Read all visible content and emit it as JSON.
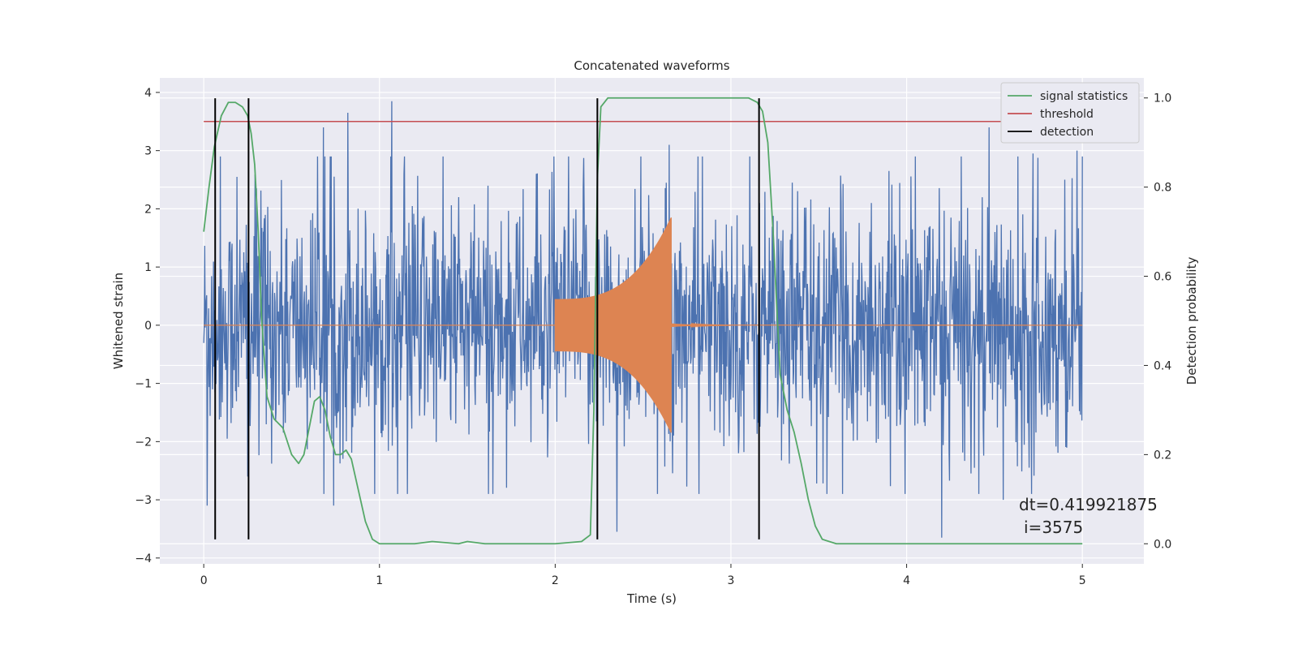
{
  "chart_data": {
    "type": "line",
    "title": "Concatenated waveforms",
    "xlabel": "Time (s)",
    "ylabel": "Whitened strain",
    "y2label": "Detection probability",
    "xlim": [
      -0.25,
      5.35
    ],
    "ylim": [
      -4.1,
      4.25
    ],
    "y2lim": [
      -0.045,
      1.045
    ],
    "xticks": [
      0,
      1,
      2,
      3,
      4,
      5
    ],
    "yticks": [
      -4,
      -3,
      -2,
      -1,
      0,
      1,
      2,
      3,
      4
    ],
    "y2ticks": [
      0.0,
      0.2,
      0.4,
      0.6,
      0.8,
      1.0
    ],
    "grid": true,
    "legend_position": "top-right",
    "colors": {
      "strain": "#4c72b0",
      "injection": "#dd8452",
      "signal_statistics": "#55a868",
      "threshold": "#c44e52",
      "detection": "#000000",
      "background": "#eaeaf2",
      "grid": "#ffffff"
    },
    "strain": {
      "x_range": [
        0,
        5
      ],
      "n_points": 1800,
      "typical_band": [
        -1.4,
        1.4
      ],
      "spikes": [
        {
          "x": 0.02,
          "y": -3.1
        },
        {
          "x": 0.19,
          "y": 2.55
        },
        {
          "x": 0.25,
          "y": -2.6
        },
        {
          "x": 0.3,
          "y": 2.35
        },
        {
          "x": 0.68,
          "y": 3.4
        },
        {
          "x": 0.74,
          "y": -3.1
        },
        {
          "x": 0.82,
          "y": 3.65
        },
        {
          "x": 1.07,
          "y": 3.85
        },
        {
          "x": 1.14,
          "y": 2.6
        },
        {
          "x": 1.45,
          "y": 2.2
        },
        {
          "x": 2.35,
          "y": -3.55
        },
        {
          "x": 2.65,
          "y": 3.1
        },
        {
          "x": 3.35,
          "y": 2.45
        },
        {
          "x": 3.8,
          "y": 2.1
        },
        {
          "x": 4.2,
          "y": -3.65
        },
        {
          "x": 4.47,
          "y": 3.4
        },
        {
          "x": 4.55,
          "y": -3.0
        },
        {
          "x": 4.72,
          "y": 2.95
        },
        {
          "x": 4.9,
          "y": 2.5
        },
        {
          "x": 4.97,
          "y": 3.0
        }
      ]
    },
    "injection": {
      "t_start": 2.0,
      "t_merger": 2.66,
      "t_ringdown_end": 3.0,
      "amplitude_start": 0.45,
      "amplitude_peak": 1.85
    },
    "signal_statistics": {
      "x": [
        0,
        0.03,
        0.06,
        0.1,
        0.14,
        0.18,
        0.22,
        0.25,
        0.27,
        0.29,
        0.31,
        0.33,
        0.36,
        0.4,
        0.45,
        0.5,
        0.54,
        0.57,
        0.6,
        0.63,
        0.66,
        0.69,
        0.72,
        0.75,
        0.78,
        0.81,
        0.84,
        0.88,
        0.92,
        0.96,
        1.0,
        1.2,
        1.3,
        1.45,
        1.5,
        1.6,
        2.0,
        2.15,
        2.2,
        2.22,
        2.24,
        2.26,
        2.3,
        2.4,
        3.1,
        3.15,
        3.18,
        3.21,
        3.24,
        3.28,
        3.32,
        3.36,
        3.4,
        3.44,
        3.48,
        3.52,
        3.6,
        5.0
      ],
      "y": [
        0.7,
        0.8,
        0.89,
        0.96,
        0.99,
        0.99,
        0.98,
        0.96,
        0.92,
        0.85,
        0.7,
        0.5,
        0.33,
        0.28,
        0.26,
        0.2,
        0.18,
        0.2,
        0.26,
        0.32,
        0.33,
        0.3,
        0.24,
        0.2,
        0.2,
        0.21,
        0.19,
        0.12,
        0.05,
        0.01,
        0.0,
        0.0,
        0.005,
        0.0,
        0.005,
        0.0,
        0.0,
        0.005,
        0.02,
        0.3,
        0.82,
        0.98,
        1.0,
        1.0,
        1.0,
        0.99,
        0.97,
        0.9,
        0.7,
        0.38,
        0.3,
        0.25,
        0.18,
        0.1,
        0.04,
        0.01,
        0.0,
        0.0
      ]
    },
    "threshold": {
      "value": 3.5,
      "x_range": [
        0,
        5
      ]
    },
    "detections": [
      0.065,
      0.255,
      2.24,
      3.16
    ],
    "detection_y_range": [
      -3.68,
      3.9
    ],
    "legend": [
      {
        "key": "signal_statistics",
        "label": "signal statistics"
      },
      {
        "key": "threshold",
        "label": "threshold"
      },
      {
        "key": "detection",
        "label": "detection"
      }
    ],
    "annotation_lines": [
      "dt=0.419921875",
      "i=3575"
    ]
  }
}
